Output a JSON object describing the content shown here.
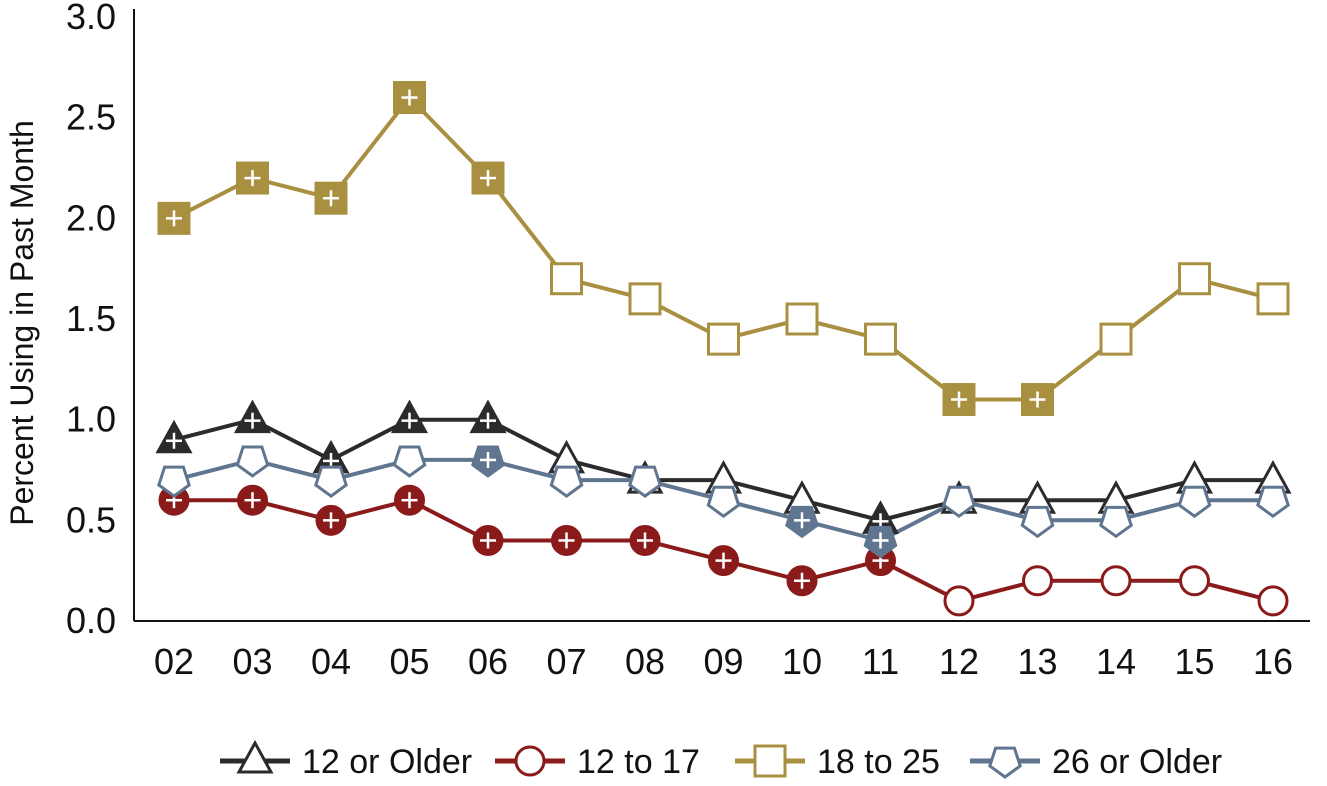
{
  "chart_data": {
    "type": "line",
    "title": "",
    "xlabel": "",
    "ylabel": "Percent Using in Past Month",
    "ylim": [
      0,
      3.0
    ],
    "y_ticks": [
      "0.0",
      "0.5",
      "1.0",
      "1.5",
      "2.0",
      "2.5",
      "3.0"
    ],
    "categories": [
      "02",
      "03",
      "04",
      "05",
      "06",
      "07",
      "08",
      "09",
      "10",
      "11",
      "12",
      "13",
      "14",
      "15",
      "16"
    ],
    "grid": false,
    "legend_position": "bottom",
    "series": [
      {
        "name": "12 or Older",
        "marker": "triangle",
        "color": "#2b2b2e",
        "values": [
          0.9,
          1.0,
          0.8,
          1.0,
          1.0,
          0.8,
          0.7,
          0.7,
          0.6,
          0.5,
          0.6,
          0.6,
          0.6,
          0.7,
          0.7
        ],
        "significant": [
          true,
          true,
          true,
          true,
          true,
          false,
          false,
          false,
          false,
          true,
          false,
          false,
          false,
          false,
          false
        ]
      },
      {
        "name": "12 to 17",
        "marker": "circle",
        "color": "#8b1a1a",
        "values": [
          0.6,
          0.6,
          0.5,
          0.6,
          0.4,
          0.4,
          0.4,
          0.3,
          0.2,
          0.3,
          0.1,
          0.2,
          0.2,
          0.2,
          0.1
        ],
        "significant": [
          true,
          true,
          true,
          true,
          true,
          true,
          true,
          true,
          true,
          true,
          false,
          false,
          false,
          false,
          false
        ]
      },
      {
        "name": "18 to 25",
        "marker": "square",
        "color": "#a89040",
        "values": [
          2.0,
          2.2,
          2.1,
          2.6,
          2.2,
          1.7,
          1.6,
          1.4,
          1.5,
          1.4,
          1.1,
          1.1,
          1.4,
          1.7,
          1.6
        ],
        "significant": [
          true,
          true,
          true,
          true,
          true,
          false,
          false,
          false,
          false,
          false,
          true,
          true,
          false,
          false,
          false
        ]
      },
      {
        "name": "26 or Older",
        "marker": "pentagon",
        "color": "#5f7590",
        "values": [
          0.7,
          0.8,
          0.7,
          0.8,
          0.8,
          0.7,
          0.7,
          0.6,
          0.5,
          0.4,
          0.6,
          0.5,
          0.5,
          0.6,
          0.6
        ],
        "significant": [
          false,
          false,
          false,
          false,
          true,
          false,
          false,
          false,
          true,
          true,
          false,
          false,
          false,
          false,
          false
        ]
      }
    ]
  }
}
